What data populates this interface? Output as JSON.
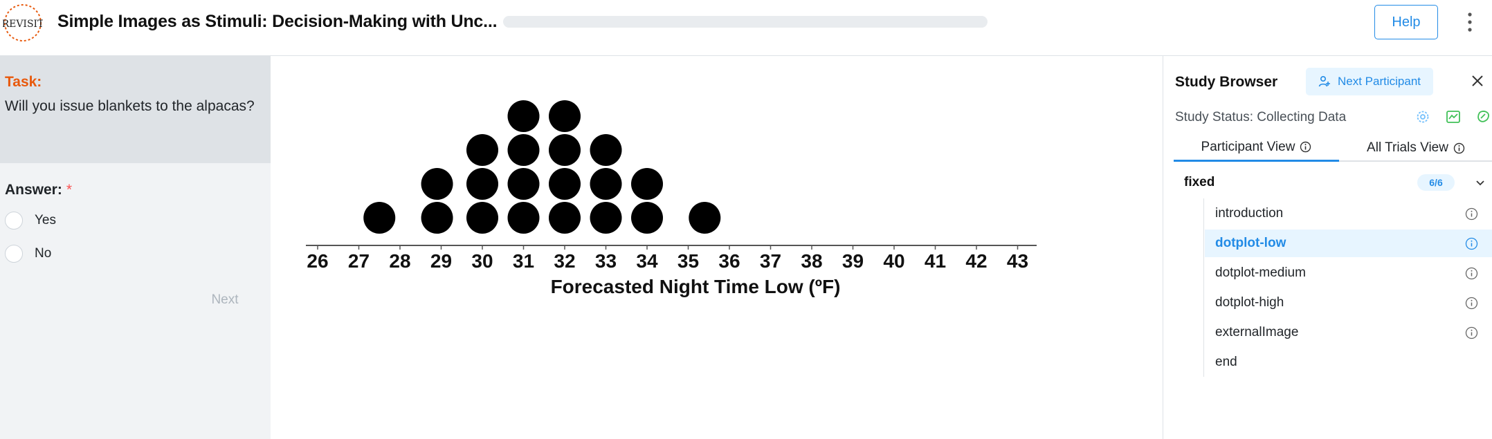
{
  "header": {
    "title": "Simple Images as Stimuli: Decision-Making with Unc...",
    "help_label": "Help",
    "progress": 0,
    "logo_text": "REVISIT"
  },
  "task": {
    "label": "Task:",
    "text": "Will you issue blankets to the alpacas?",
    "answer_label": "Answer:",
    "required_mark": "*",
    "options": [
      "Yes",
      "No"
    ],
    "next_label": "Next"
  },
  "stimulus": {
    "axis_ticks": [
      "26",
      "27",
      "28",
      "29",
      "30",
      "31",
      "32",
      "33",
      "34",
      "35",
      "36",
      "37",
      "38",
      "39",
      "40",
      "41",
      "42",
      "43"
    ],
    "xlabel": "Forecasted Night Time Low (ºF)",
    "dot_columns": [
      {
        "x": 27.5,
        "count": 1
      },
      {
        "x": 28.9,
        "count": 2
      },
      {
        "x": 30.0,
        "count": 3
      },
      {
        "x": 31.0,
        "count": 4
      },
      {
        "x": 32.0,
        "count": 4
      },
      {
        "x": 33.0,
        "count": 3
      },
      {
        "x": 34.0,
        "count": 2
      },
      {
        "x": 35.4,
        "count": 1
      }
    ]
  },
  "browser": {
    "title": "Study Browser",
    "next_participant_label": "Next Participant",
    "status_text": "Study Status: Collecting Data",
    "tabs": [
      "Participant View",
      "All Trials View"
    ],
    "group": {
      "name": "fixed",
      "badge": "6/6"
    },
    "trials": [
      "introduction",
      "dotplot-low",
      "dotplot-medium",
      "dotplot-high",
      "externalImage",
      "end"
    ],
    "current_trial": "dotplot-low"
  },
  "colors": {
    "accent": "#228be6",
    "task_label": "#e8590c",
    "required": "#fa5252",
    "status_icon_green": "#40c057"
  }
}
